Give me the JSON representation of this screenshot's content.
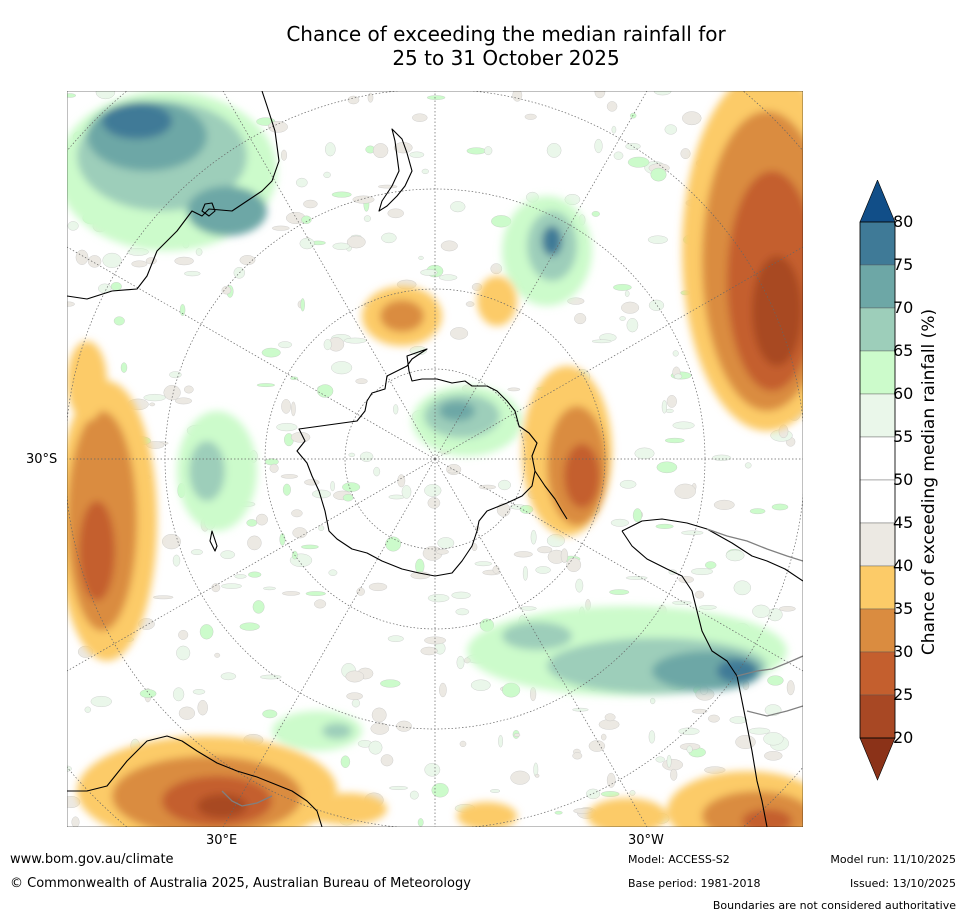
{
  "title": {
    "line1": "Chance of exceeding the median rainfall for",
    "line2": "25 to 31 October 2025"
  },
  "map": {
    "projection": "south-polar-stereographic",
    "lat_label": "30°S",
    "lon_labels": [
      "30°E",
      "30°W"
    ],
    "land_outline_color": "#000000",
    "border_color": "#808080"
  },
  "colorbar": {
    "label": "Chance of exceeding median rainfall (%)",
    "ticks": [
      "20",
      "25",
      "30",
      "35",
      "40",
      "45",
      "50",
      "55",
      "60",
      "65",
      "70",
      "75",
      "80"
    ],
    "bands": [
      {
        "range": "<20",
        "color": "#8b3218"
      },
      {
        "range": "20-25",
        "color": "#a84824"
      },
      {
        "range": "25-30",
        "color": "#c45f2e"
      },
      {
        "range": "30-35",
        "color": "#da8c40"
      },
      {
        "range": "35-40",
        "color": "#fccb68"
      },
      {
        "range": "40-45",
        "color": "#ece9e3"
      },
      {
        "range": "45-50",
        "color": "#ffffff"
      },
      {
        "range": "50-55",
        "color": "#ffffff"
      },
      {
        "range": "55-60",
        "color": "#eaf7ea"
      },
      {
        "range": "60-65",
        "color": "#ccfbcb"
      },
      {
        "range": "65-70",
        "color": "#9dceba"
      },
      {
        "range": "70-75",
        "color": "#6da7a6"
      },
      {
        "range": "75-80",
        "color": "#3f7a97"
      },
      {
        "range": ">80",
        "color": "#114e88"
      }
    ]
  },
  "footer": {
    "website": "www.bom.gov.au/climate",
    "copyright": "© Commonwealth of Australia 2025, Australian Bureau of Meteorology",
    "model": "Model: ACCESS-S2",
    "base_period": "Base period: 1981-2018",
    "model_run": "Model run: 11/10/2025",
    "issued": "Issued: 13/10/2025",
    "disclaimer": "Boundaries are not considered authoritative"
  }
}
